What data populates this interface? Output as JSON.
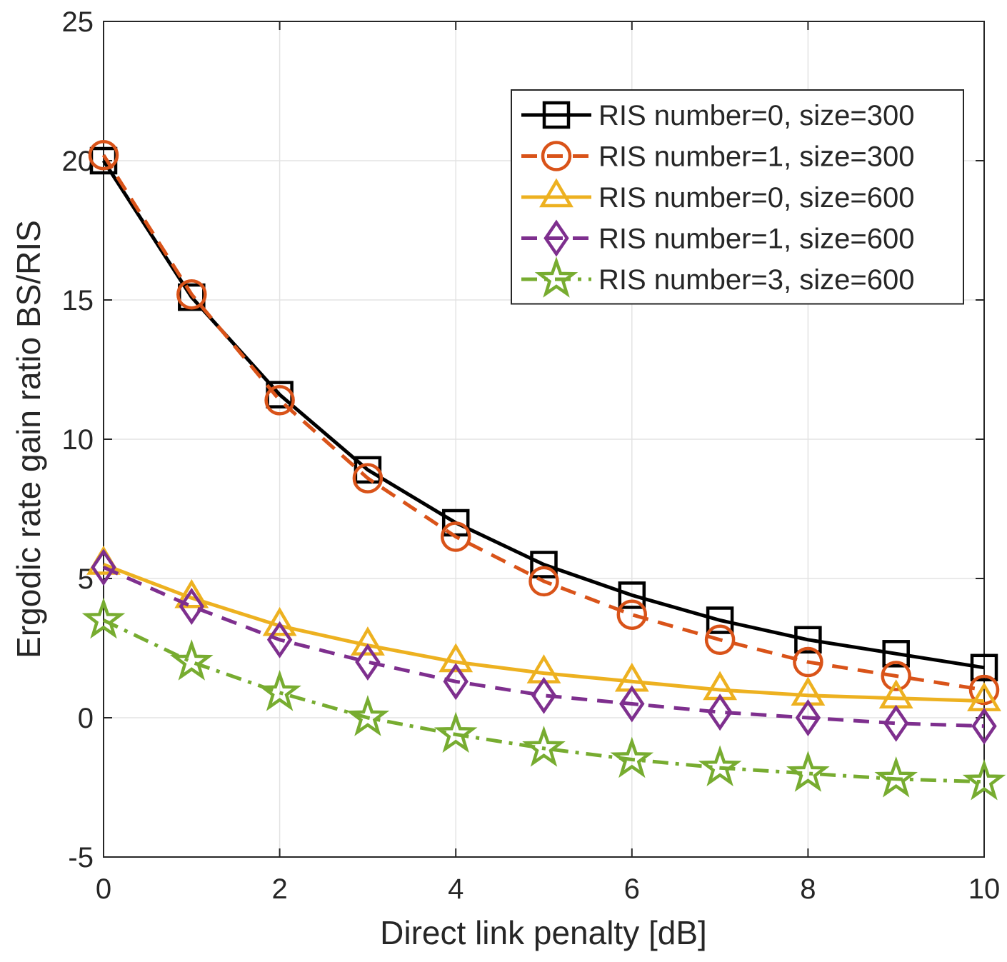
{
  "chart_data": {
    "type": "line",
    "title": "",
    "xlabel": "Direct link penalty [dB]",
    "ylabel": "Ergodic rate gain ratio BS/RIS",
    "xlim": [
      0,
      10
    ],
    "ylim": [
      -5,
      25
    ],
    "grid": true,
    "legend_position": "top-right",
    "x_ticks": [
      0,
      2,
      4,
      6,
      8,
      10
    ],
    "y_ticks": [
      -5,
      0,
      5,
      10,
      15,
      20,
      25
    ],
    "x_tick_labels": [
      "0",
      "2",
      "4",
      "6",
      "8",
      "10"
    ],
    "y_tick_labels": [
      "-5",
      "0",
      "5",
      "10",
      "15",
      "20",
      "25"
    ],
    "x": [
      0,
      1,
      2,
      3,
      4,
      5,
      6,
      7,
      8,
      9,
      10
    ],
    "series": [
      {
        "name": "RIS number=0, size=300",
        "color": "#000000",
        "dash": "solid",
        "marker": "square",
        "values": [
          20.0,
          15.1,
          11.6,
          8.9,
          7.0,
          5.5,
          4.4,
          3.5,
          2.8,
          2.3,
          1.8
        ]
      },
      {
        "name": "RIS number=1, size=300",
        "color": "#D95319",
        "dash": "dashed",
        "marker": "circle",
        "values": [
          20.2,
          15.2,
          11.4,
          8.6,
          6.5,
          4.9,
          3.7,
          2.8,
          2.0,
          1.5,
          1.0
        ]
      },
      {
        "name": "RIS number=0, size=600",
        "color": "#EDB120",
        "dash": "solid",
        "marker": "triangle",
        "values": [
          5.5,
          4.3,
          3.3,
          2.6,
          2.0,
          1.6,
          1.3,
          1.0,
          0.8,
          0.7,
          0.6
        ]
      },
      {
        "name": "RIS number=1, size=600",
        "color": "#7E2F8E",
        "dash": "dashed",
        "marker": "diamond",
        "values": [
          5.4,
          4.0,
          2.8,
          2.0,
          1.3,
          0.8,
          0.5,
          0.2,
          0.0,
          -0.2,
          -0.3
        ]
      },
      {
        "name": "RIS number=3, size=600",
        "color": "#77AC30",
        "dash": "dashdot",
        "marker": "star",
        "values": [
          3.5,
          2.0,
          0.9,
          0.0,
          -0.6,
          -1.1,
          -1.5,
          -1.8,
          -2.0,
          -2.2,
          -2.3
        ]
      }
    ]
  }
}
